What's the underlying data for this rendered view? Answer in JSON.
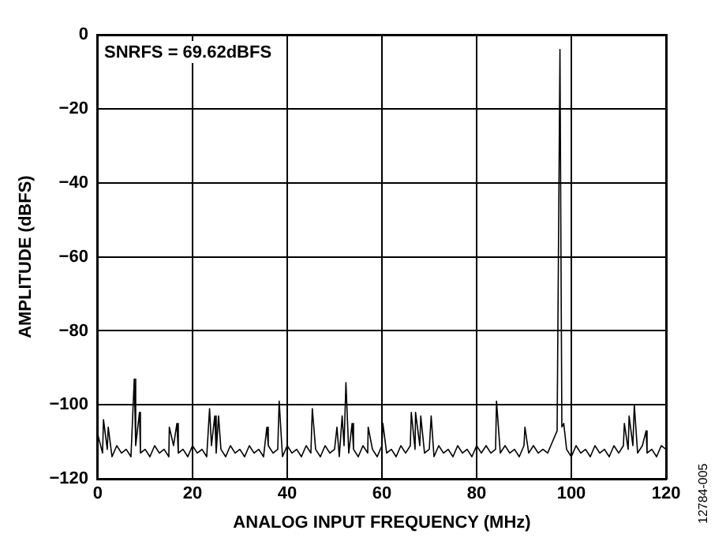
{
  "chart_data": {
    "type": "line",
    "xlabel": "ANALOG INPUT FREQUENCY (MHz)",
    "ylabel": "AMPLITUDE (dBFS)",
    "annotations": [
      "SNRFS = 69.62dBFS",
      "12784-005"
    ],
    "x": [
      0,
      1,
      1.2,
      2,
      2.2,
      3,
      4,
      5,
      6,
      7,
      7.7,
      8,
      8.8,
      9,
      10,
      11,
      12,
      13,
      14,
      15,
      15.1,
      16,
      16.7,
      17,
      18,
      19,
      20,
      21,
      22,
      23,
      23.6,
      24,
      24.7,
      25,
      25.5,
      26,
      27,
      28,
      29,
      30,
      31,
      32,
      33,
      34,
      35,
      35.7,
      36,
      37,
      38,
      38.3,
      39,
      40,
      41,
      42,
      43,
      44,
      45,
      45.3,
      46,
      47,
      48,
      49,
      50,
      50.5,
      51,
      51.6,
      52,
      52.4,
      53,
      53.7,
      54,
      55,
      56,
      57,
      57.1,
      58,
      59,
      60,
      60.2,
      61,
      62,
      63,
      64,
      65,
      66,
      66.2,
      67,
      67.1,
      68,
      68.2,
      69,
      70,
      70.4,
      71,
      72,
      73,
      74,
      75,
      76,
      77,
      78,
      79,
      80,
      81,
      82,
      83,
      84,
      84.2,
      85,
      86,
      87,
      88,
      89,
      90,
      90.2,
      91,
      92,
      93,
      94,
      95,
      96,
      97,
      97.6,
      98,
      98.4,
      99,
      100,
      101,
      102,
      103,
      104,
      105,
      106,
      107,
      108,
      109,
      110,
      111,
      111.2,
      112,
      112.2,
      113,
      113.3,
      114,
      115,
      115.8,
      116,
      117,
      118,
      119,
      120
    ],
    "series": [
      {
        "color": "#000000",
        "values": [
          -108,
          -113,
          -104,
          -112,
          -106,
          -114,
          -111,
          -113,
          -112,
          -114,
          -93,
          -111,
          -102,
          -113,
          -112,
          -114,
          -111,
          -113,
          -112,
          -114,
          -106,
          -111,
          -105,
          -113,
          -112,
          -114,
          -111,
          -113,
          -112,
          -114,
          -101,
          -111,
          -103,
          -113,
          -103,
          -112,
          -114,
          -111,
          -113,
          -112,
          -114,
          -111,
          -113,
          -112,
          -114,
          -106,
          -111,
          -113,
          -112,
          -99,
          -114,
          -111,
          -113,
          -112,
          -114,
          -111,
          -113,
          -101,
          -112,
          -114,
          -111,
          -113,
          -112,
          -106,
          -114,
          -103,
          -111,
          -94,
          -113,
          -105,
          -112,
          -114,
          -111,
          -113,
          -106,
          -112,
          -114,
          -111,
          -105,
          -113,
          -112,
          -114,
          -111,
          -113,
          -111,
          -102,
          -112,
          -102,
          -111,
          -103,
          -113,
          -112,
          -103,
          -114,
          -111,
          -113,
          -112,
          -114,
          -111,
          -113,
          -112,
          -114,
          -111,
          -113,
          -111,
          -113,
          -112,
          -99,
          -113,
          -111,
          -113,
          -112,
          -114,
          -111,
          -106,
          -113,
          -111,
          -113,
          -112,
          -113,
          -110,
          -107,
          -4,
          -106,
          -105,
          -112,
          -114,
          -111,
          -113,
          -112,
          -114,
          -111,
          -113,
          -112,
          -114,
          -111,
          -113,
          -111,
          -105,
          -112,
          -103,
          -111,
          -100,
          -113,
          -111,
          -107,
          -113,
          -112,
          -114,
          -111,
          -112
        ]
      }
    ],
    "xlim": [
      0,
      120
    ],
    "xticks": [
      0,
      20,
      40,
      60,
      80,
      100,
      120
    ],
    "ylim": [
      -120,
      0
    ],
    "yticks": [
      -120,
      -100,
      -80,
      -60,
      -40,
      -20,
      0
    ],
    "grid": true,
    "legend": false,
    "marker": "none",
    "line_style": "solid"
  }
}
